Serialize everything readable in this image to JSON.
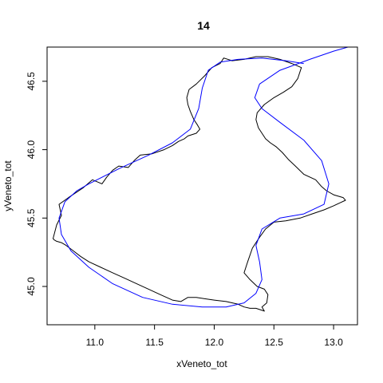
{
  "chart_data": {
    "type": "line",
    "title": "14",
    "xlabel": "xVeneto_tot",
    "ylabel": "yVeneto_tot",
    "xlim": [
      10.6,
      13.2
    ],
    "ylim": [
      44.72,
      46.75
    ],
    "xticks": [
      11.0,
      11.5,
      12.0,
      12.5,
      13.0
    ],
    "xtick_labels": [
      "11.0",
      "11.5",
      "12.0",
      "12.5",
      "13.0"
    ],
    "yticks": [
      45.0,
      45.5,
      46.0,
      46.5
    ],
    "ytick_labels": [
      "45.0",
      "45.5",
      "46.0",
      "46.5"
    ],
    "grid": false,
    "colors": {
      "outline": "#000000",
      "curve": "#0000ff"
    },
    "series": [
      {
        "type": "outline",
        "color": "#000000",
        "x": [
          10.65,
          10.68,
          10.72,
          10.7,
          10.78,
          10.9,
          10.98,
          11.06,
          11.1,
          11.15,
          11.2,
          11.28,
          11.33,
          11.38,
          11.48,
          11.58,
          11.65,
          11.7,
          11.75,
          11.78,
          11.85,
          11.88,
          11.86,
          11.83,
          11.8,
          11.78,
          11.77,
          11.79,
          11.85,
          11.92,
          11.98,
          12.05,
          12.08,
          12.15,
          12.25,
          12.35,
          12.45,
          12.55,
          12.65,
          12.73,
          12.7,
          12.65,
          12.58,
          12.5,
          12.42,
          12.36,
          12.35,
          12.37,
          12.4,
          12.43,
          12.47,
          12.52,
          12.57,
          12.62,
          12.68,
          12.75,
          12.85,
          12.9,
          12.94,
          13.0,
          13.08,
          13.1,
          13.05,
          13.0,
          12.92,
          12.82,
          12.72,
          12.6,
          12.5,
          12.43,
          12.38,
          12.32,
          12.28,
          12.25,
          12.3,
          12.36,
          12.42,
          12.45,
          12.44,
          12.4,
          12.42,
          12.35,
          12.3,
          12.25,
          12.2,
          12.1,
          12.0,
          11.92,
          11.85,
          11.78,
          11.72,
          11.65,
          11.55,
          11.45,
          11.35,
          11.25,
          11.15,
          11.05,
          10.95,
          10.88,
          10.82,
          10.76,
          10.72,
          10.68,
          10.66,
          10.65
        ],
        "y": [
          45.35,
          45.45,
          45.52,
          45.6,
          45.65,
          45.72,
          45.78,
          45.75,
          45.8,
          45.85,
          45.88,
          45.87,
          45.92,
          45.96,
          45.97,
          46.0,
          46.03,
          46.06,
          46.08,
          46.1,
          46.12,
          46.15,
          46.18,
          46.22,
          46.28,
          46.33,
          46.38,
          46.44,
          46.48,
          46.54,
          46.6,
          46.63,
          46.67,
          46.65,
          46.66,
          46.68,
          46.68,
          46.66,
          46.63,
          46.6,
          46.52,
          46.46,
          46.42,
          46.38,
          46.33,
          46.27,
          46.22,
          46.16,
          46.12,
          46.08,
          46.05,
          46.02,
          45.98,
          45.93,
          45.88,
          45.82,
          45.78,
          45.73,
          45.7,
          45.67,
          45.65,
          45.63,
          45.61,
          45.59,
          45.56,
          45.53,
          45.5,
          45.48,
          45.47,
          45.42,
          45.36,
          45.28,
          45.18,
          45.1,
          45.05,
          45.0,
          44.98,
          44.94,
          44.88,
          44.85,
          44.82,
          44.84,
          44.84,
          44.85,
          44.87,
          44.89,
          44.9,
          44.91,
          44.92,
          44.92,
          44.89,
          44.9,
          44.94,
          44.98,
          45.02,
          45.06,
          45.1,
          45.14,
          45.18,
          45.22,
          45.26,
          45.3,
          45.32,
          45.33,
          45.34,
          45.35
        ]
      },
      {
        "type": "curve",
        "color": "#0000ff",
        "x": [
          10.95,
          10.85,
          10.75,
          10.7,
          10.72,
          10.8,
          10.95,
          11.15,
          11.4,
          11.65,
          11.9,
          12.1,
          12.25,
          12.35,
          12.4,
          12.38,
          12.35,
          12.4,
          12.55,
          12.75,
          12.92,
          12.96,
          12.9,
          12.75,
          12.55,
          12.4,
          12.34,
          12.38,
          12.55,
          12.8,
          13.0,
          13.2
        ],
        "y": [
          45.75,
          45.7,
          45.62,
          45.5,
          45.38,
          45.26,
          45.14,
          45.02,
          44.92,
          44.87,
          44.85,
          44.85,
          44.88,
          44.95,
          45.05,
          45.18,
          45.3,
          45.42,
          45.5,
          45.53,
          45.6,
          45.75,
          45.92,
          46.07,
          46.2,
          46.3,
          46.38,
          46.48,
          46.58,
          46.66,
          46.72,
          46.77
        ]
      },
      {
        "type": "curve",
        "color": "#0000ff",
        "x": [
          10.95,
          11.2,
          11.45,
          11.65,
          11.8,
          11.87,
          11.9,
          11.95,
          12.05,
          12.2,
          12.4,
          12.6,
          12.75
        ],
        "y": [
          45.75,
          45.86,
          45.96,
          46.05,
          46.15,
          46.3,
          46.45,
          46.58,
          46.64,
          46.66,
          46.67,
          46.65,
          46.63
        ]
      }
    ]
  }
}
